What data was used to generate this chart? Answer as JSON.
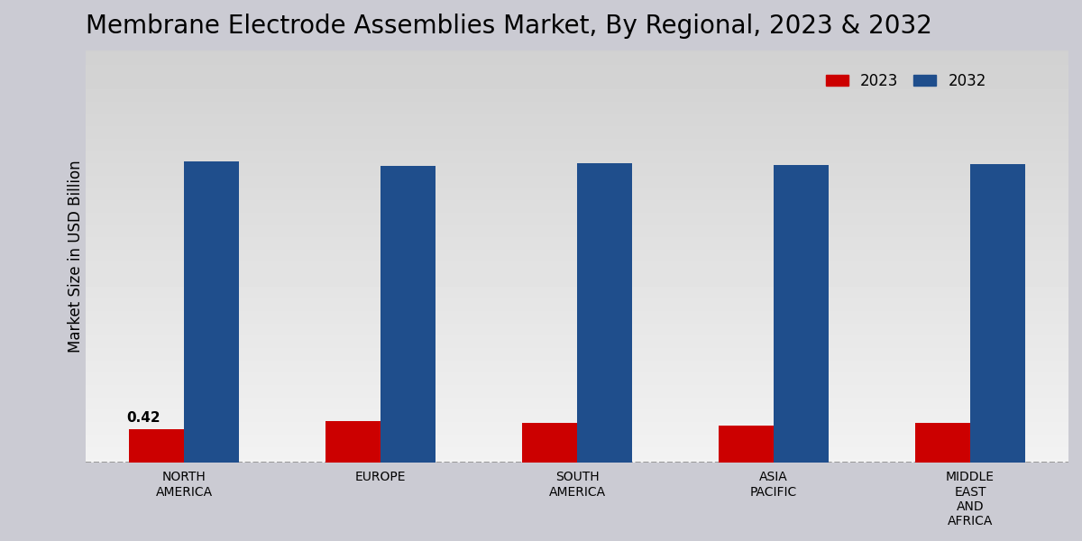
{
  "title": "Membrane Electrode Assemblies Market, By Regional, 2023 & 2032",
  "ylabel": "Market Size in USD Billion",
  "categories": [
    "NORTH\nAMERICA",
    "EUROPE",
    "SOUTH\nAMERICA",
    "ASIA\nPACIFIC",
    "MIDDLE\nEAST\nAND\nAFRICA"
  ],
  "values_2023": [
    0.42,
    0.52,
    0.5,
    0.46,
    0.5
  ],
  "values_2032": [
    3.8,
    3.75,
    3.78,
    3.76,
    3.77
  ],
  "color_2023": "#cc0000",
  "color_2032": "#1f4e8c",
  "annotation_label": "0.42",
  "annotation_index": 0,
  "bar_width": 0.28,
  "ylim": [
    0,
    5.2
  ],
  "legend_labels": [
    "2023",
    "2032"
  ],
  "title_fontsize": 20,
  "axis_label_fontsize": 12,
  "tick_fontsize": 10,
  "legend_fontsize": 12,
  "bg_light": "#f0f0f4",
  "bg_dark": "#c8c8d0"
}
